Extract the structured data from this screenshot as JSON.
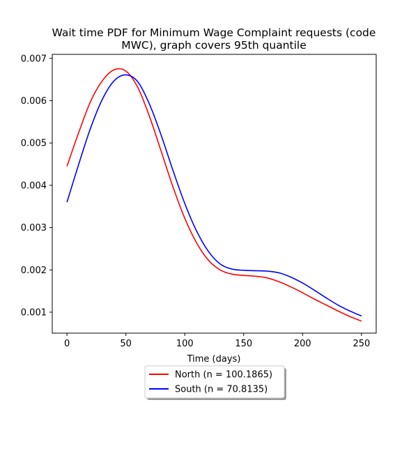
{
  "chart_data": {
    "type": "line",
    "title_lines": [
      "Wait time PDF for Minimum Wage Complaint  requests (code",
      "MWC), graph covers 95th quantile"
    ],
    "xlabel": "Time (days)",
    "ylabel": "",
    "xlim": [
      -12.5,
      262.5
    ],
    "ylim": [
      0.000505,
      0.007095
    ],
    "x_ticks": [
      0,
      50,
      100,
      150,
      200,
      250
    ],
    "y_ticks": [
      0.001,
      0.002,
      0.003,
      0.004,
      0.005,
      0.006,
      0.007
    ],
    "grid": false,
    "legend_position": "below-center",
    "x": [
      0,
      10,
      20,
      30,
      40,
      50,
      60,
      70,
      80,
      90,
      100,
      110,
      120,
      130,
      140,
      150,
      160,
      170,
      180,
      190,
      200,
      210,
      220,
      230,
      240,
      250
    ],
    "series": [
      {
        "name": "North (n = 100.1865)",
        "color": "#ff0000",
        "values": [
          0.00445,
          0.00525,
          0.00598,
          0.00647,
          0.00673,
          0.0067,
          0.00632,
          0.00563,
          0.0048,
          0.00396,
          0.00322,
          0.00264,
          0.00223,
          0.002,
          0.0019,
          0.00187,
          0.00185,
          0.00181,
          0.00172,
          0.0016,
          0.00146,
          0.00131,
          0.00117,
          0.00103,
          0.0009,
          0.00079
        ]
      },
      {
        "name": "South (n = 70.8135)",
        "color": "#0000ff",
        "values": [
          0.0036,
          0.0045,
          0.00535,
          0.00603,
          0.00647,
          0.00661,
          0.00645,
          0.00592,
          0.00518,
          0.00435,
          0.00357,
          0.00292,
          0.00244,
          0.00214,
          0.00202,
          0.00199,
          0.00198,
          0.00197,
          0.00193,
          0.00183,
          0.00169,
          0.00152,
          0.00134,
          0.00117,
          0.00103,
          0.00091
        ]
      }
    ]
  }
}
